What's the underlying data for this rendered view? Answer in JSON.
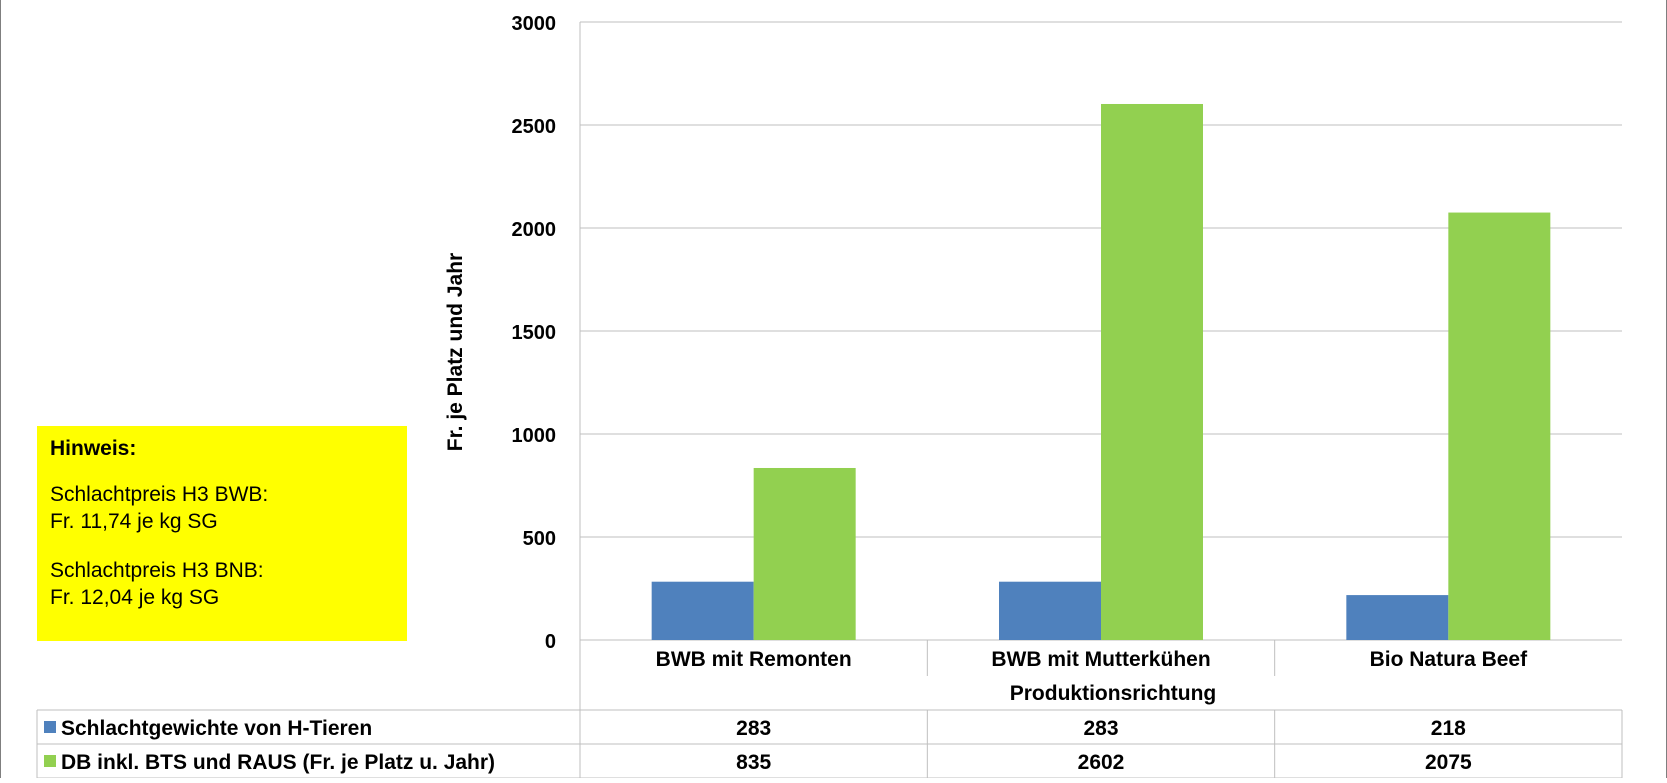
{
  "note": {
    "title": "Hinweis:",
    "line1": "Schlachtpreis H3 BWB:",
    "line2": "Fr. 11,74 je kg SG",
    "line3": "Schlachtpreis H3 BNB:",
    "line4": "Fr. 12,04 je kg SG"
  },
  "chart_data": {
    "type": "bar",
    "title": "",
    "xlabel": "Produktionsrichtung",
    "ylabel": "Fr. je Platz und Jahr",
    "ylim": [
      0,
      3000
    ],
    "yticks": [
      0,
      500,
      1000,
      1500,
      2000,
      2500,
      3000
    ],
    "grid": true,
    "legend": "data-table-below",
    "categories": [
      "BWB mit Remonten",
      "BWB mit Mutterkühen",
      "Bio Natura Beef"
    ],
    "series": [
      {
        "name": "Schlachtgewichte von H-Tieren",
        "color": "#4f81bd",
        "values": [
          283,
          283,
          218
        ]
      },
      {
        "name": "DB inkl. BTS und RAUS (Fr. je Platz u. Jahr)",
        "color": "#92d050",
        "values": [
          835,
          2602,
          2075
        ]
      }
    ]
  }
}
